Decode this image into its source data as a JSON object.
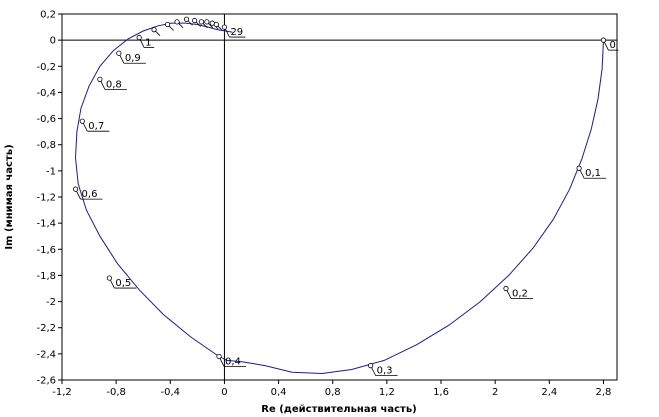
{
  "chart_data": {
    "type": "line",
    "title": "",
    "xlabel": "Re (действительная часть)",
    "ylabel": "Im (мнимая часть)",
    "xlim": [
      -1.2,
      2.9
    ],
    "ylim": [
      -2.6,
      0.2
    ],
    "x_ticks": [
      -1.2,
      -0.8,
      -0.4,
      0,
      0.4,
      0.8,
      1.2,
      1.6,
      2,
      2.4,
      2.8
    ],
    "x_tick_labels": [
      "-1,2",
      "-0,8",
      "-0,4",
      "0",
      "0,4",
      "0,8",
      "1,2",
      "1,6",
      "2",
      "2,4",
      "2,8"
    ],
    "y_ticks": [
      0.2,
      0,
      -0.2,
      -0.4,
      -0.6,
      -0.8,
      -1,
      -1.2,
      -1.4,
      -1.6,
      -1.8,
      -2,
      -2.2,
      -2.4,
      -2.6
    ],
    "y_tick_labels": [
      "0,2",
      "0",
      "-0,2",
      "-0,4",
      "-0,6",
      "-0,8",
      "-1",
      "-1,2",
      "-1,4",
      "-1,6",
      "-1,8",
      "-2",
      "-2,2",
      "-2,4",
      "-2,6"
    ],
    "grid": false,
    "series": [
      {
        "color": "#1a1a9c",
        "x": [
          2.8,
          2.79,
          2.76,
          2.71,
          2.64,
          2.55,
          2.43,
          2.28,
          2.1,
          1.89,
          1.66,
          1.42,
          1.18,
          0.94,
          0.72,
          0.5,
          0.3,
          0.13,
          0.02,
          -0.04,
          -0.25,
          -0.45,
          -0.63,
          -0.79,
          -0.92,
          -1.02,
          -1.08,
          -1.1,
          -1.09,
          -1.06,
          -1.0,
          -0.92,
          -0.82,
          -0.71,
          -0.6,
          -0.49,
          -0.39,
          -0.29,
          -0.2,
          -0.12,
          -0.05,
          0.01,
          0.06
        ],
        "y": [
          0.0,
          -0.22,
          -0.45,
          -0.68,
          -0.91,
          -1.14,
          -1.37,
          -1.59,
          -1.8,
          -2.0,
          -2.18,
          -2.33,
          -2.45,
          -2.52,
          -2.55,
          -2.54,
          -2.49,
          -2.46,
          -2.45,
          -2.42,
          -2.27,
          -2.1,
          -1.91,
          -1.71,
          -1.5,
          -1.3,
          -1.1,
          -0.9,
          -0.7,
          -0.52,
          -0.35,
          -0.2,
          -0.08,
          0.01,
          0.07,
          0.11,
          0.13,
          0.13,
          0.12,
          0.1,
          0.08,
          0.07,
          0.06
        ]
      }
    ],
    "markers": [
      {
        "label": "0",
        "x": 2.8,
        "y": 0.0
      },
      {
        "label": "0,1",
        "x": 2.62,
        "y": -0.98
      },
      {
        "label": "0,2",
        "x": 2.08,
        "y": -1.9
      },
      {
        "label": "0,3",
        "x": 1.08,
        "y": -2.49
      },
      {
        "label": "0,4",
        "x": -0.04,
        "y": -2.42
      },
      {
        "label": "0,5",
        "x": -0.85,
        "y": -1.82
      },
      {
        "label": "0,6",
        "x": -1.1,
        "y": -1.14
      },
      {
        "label": "0,7",
        "x": -1.05,
        "y": -0.62
      },
      {
        "label": "0,8",
        "x": -0.92,
        "y": -0.3
      },
      {
        "label": "0,9",
        "x": -0.78,
        "y": -0.1
      },
      {
        "label": "1",
        "x": -0.63,
        "y": 0.02
      },
      {
        "label": "",
        "x": -0.52,
        "y": 0.08
      },
      {
        "label": "",
        "x": -0.42,
        "y": 0.12
      },
      {
        "label": "",
        "x": -0.35,
        "y": 0.14
      },
      {
        "label": "",
        "x": -0.28,
        "y": 0.16
      },
      {
        "label": "",
        "x": -0.22,
        "y": 0.15
      },
      {
        "label": "",
        "x": -0.17,
        "y": 0.14
      },
      {
        "label": "",
        "x": -0.13,
        "y": 0.14
      },
      {
        "label": "",
        "x": -0.09,
        "y": 0.13
      },
      {
        "label": "",
        "x": -0.06,
        "y": 0.12
      },
      {
        "label": "29",
        "x": 0.0,
        "y": 0.1
      }
    ]
  }
}
